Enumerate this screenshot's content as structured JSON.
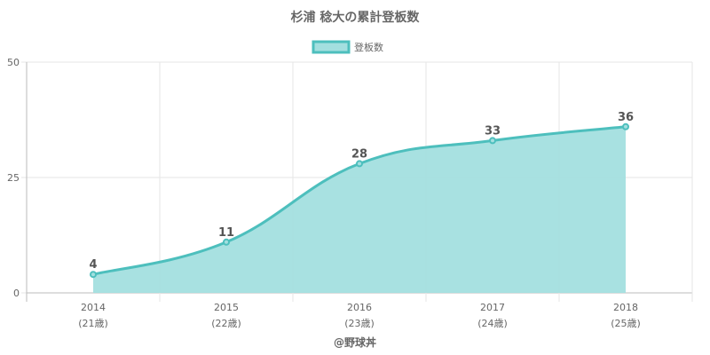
{
  "chart_data": {
    "type": "area",
    "title": "杉浦 稔大の累計登板数",
    "categories": [
      "2014",
      "2015",
      "2016",
      "2017",
      "2018"
    ],
    "age_labels": [
      "(21歳)",
      "(22歳)",
      "(23歳)",
      "(24歳)",
      "(25歳)"
    ],
    "series": [
      {
        "name": "登板数",
        "values": [
          4,
          11,
          28,
          33,
          36
        ]
      }
    ],
    "data_labels": [
      "4",
      "11",
      "28",
      "33",
      "36"
    ],
    "y_ticks": [
      "0",
      "25",
      "50"
    ],
    "ylim": [
      0,
      50
    ],
    "grid": true,
    "legend_position": "top",
    "colors": {
      "line": "#4dbfbd",
      "fill": "#a3dfdf",
      "grid": "#e6e6e6",
      "axis": "#bbbbbb"
    }
  },
  "footer": {
    "credit": "@野球丼"
  }
}
